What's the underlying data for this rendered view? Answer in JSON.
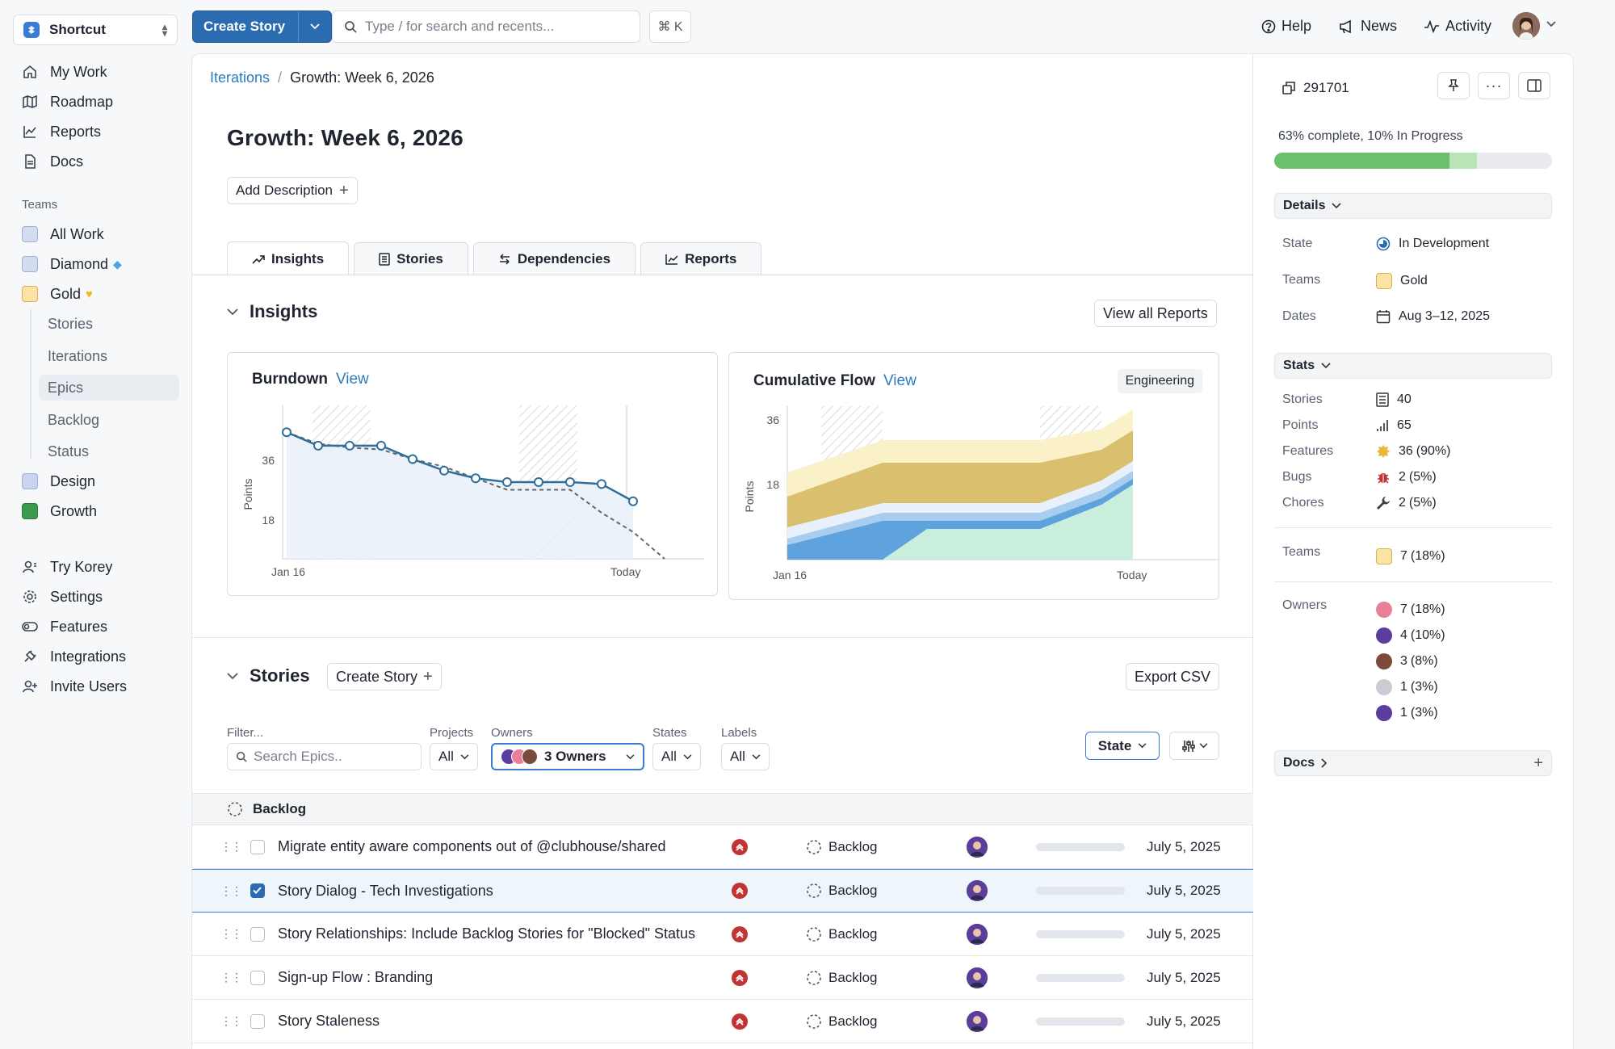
{
  "workspace": {
    "name": "Shortcut"
  },
  "nav": {
    "main": [
      {
        "label": "My Work",
        "icon": "home-icon"
      },
      {
        "label": "Roadmap",
        "icon": "map-icon"
      },
      {
        "label": "Reports",
        "icon": "chart-line-icon"
      },
      {
        "label": "Docs",
        "icon": "document-icon"
      }
    ],
    "teams_label": "Teams",
    "teams": [
      {
        "label": "All Work"
      },
      {
        "label": "Diamond"
      },
      {
        "label": "Gold"
      }
    ],
    "gold_sub": [
      "Stories",
      "Iterations",
      "Epics",
      "Backlog",
      "Status"
    ],
    "more_teams": [
      {
        "label": "Design"
      },
      {
        "label": "Growth"
      }
    ],
    "bottom": [
      {
        "label": "Try Korey"
      },
      {
        "label": "Settings"
      },
      {
        "label": "Features"
      },
      {
        "label": "Integrations"
      },
      {
        "label": "Invite Users"
      }
    ]
  },
  "topbar": {
    "create_story": "Create Story",
    "search_placeholder": "Type / for search and recents...",
    "shortcut": "⌘ K",
    "help": "Help",
    "news": "News",
    "activity": "Activity"
  },
  "breadcrumb": {
    "parent": "Iterations",
    "current": "Growth: Week 6, 2026"
  },
  "page": {
    "title": "Growth: Week 6, 2026",
    "add_description": "Add Description",
    "tabs": [
      "Insights",
      "Stories",
      "Dependencies",
      "Reports"
    ]
  },
  "insights": {
    "heading": "Insights",
    "view_all": "View all Reports",
    "burndown": {
      "title": "Burndown",
      "view": "View"
    },
    "cumulative": {
      "title": "Cumulative Flow",
      "view": "View",
      "badge": "Engineering"
    }
  },
  "chart_data": [
    {
      "type": "line",
      "title": "Burndown",
      "ylabel": "Points",
      "yticks": [
        36,
        18
      ],
      "xticks": [
        "Jan 16",
        "Today"
      ],
      "ylim": [
        0,
        40
      ],
      "series": [
        {
          "values": [
            33,
            29.5,
            29.5,
            29.5,
            26,
            23,
            21,
            20,
            20,
            20,
            19.5,
            15
          ]
        },
        {
          "values": [
            33,
            30,
            29,
            28.5,
            26,
            24,
            21,
            18,
            18,
            18,
            12,
            7,
            0
          ]
        }
      ]
    },
    {
      "type": "area",
      "title": "Cumulative Flow",
      "ylabel": "Points",
      "yticks": [
        36,
        18
      ],
      "xticks": [
        "Jan 16",
        "Today"
      ],
      "ylim": [
        0,
        42
      ]
    }
  ],
  "stories": {
    "heading": "Stories",
    "create": "Create Story",
    "export": "Export CSV",
    "filters": {
      "filter_label": "Filter...",
      "search_placeholder": "Search Epics..",
      "projects_label": "Projects",
      "projects_value": "All",
      "owners_label": "Owners",
      "owners_value": "3 Owners",
      "states_label": "States",
      "states_value": "All",
      "labels_label": "Labels",
      "labels_value": "All"
    },
    "group_by": "State",
    "group": "Backlog",
    "rows": [
      {
        "name": "Migrate entity aware components out of @clubhouse/shared",
        "state": "Backlog",
        "date": "July 5, 2025",
        "selected": false
      },
      {
        "name": "Story Dialog - Tech Investigations",
        "state": "Backlog",
        "date": "July 5, 2025",
        "selected": true
      },
      {
        "name": "Story Relationships: Include Backlog Stories for \"Blocked\" Status",
        "state": "Backlog",
        "date": "July 5, 2025",
        "selected": false
      },
      {
        "name": "Sign-up Flow : Branding",
        "state": "Backlog",
        "date": "July 5, 2025",
        "selected": false
      },
      {
        "name": "Story Staleness",
        "state": "Backlog",
        "date": "July 5, 2025",
        "selected": false
      }
    ]
  },
  "panel": {
    "id": "291701",
    "progress_text": "63% complete, 10% In Progress",
    "progress": {
      "complete": 0.63,
      "in_progress": 0.1
    },
    "details_label": "Details",
    "state_k": "State",
    "state_v": "In Development",
    "teams_k": "Teams",
    "teams_v": "Gold",
    "dates_k": "Dates",
    "dates_v": "Aug 3–12, 2025",
    "stats_label": "Stats",
    "stats": [
      {
        "k": "Stories",
        "v": "40",
        "p": ""
      },
      {
        "k": "Points",
        "v": "65",
        "p": ""
      },
      {
        "k": "Features",
        "v": "36",
        "p": "(90%)"
      },
      {
        "k": "Bugs",
        "v": "2",
        "p": "(5%)"
      },
      {
        "k": "Chores",
        "v": "2",
        "p": "(5%)"
      }
    ],
    "teams_stat": {
      "k": "Teams",
      "v": "7",
      "p": "(18%)"
    },
    "owners_k": "Owners",
    "owners": [
      {
        "v": "7",
        "p": "(18%)",
        "color": "#e8809a"
      },
      {
        "v": "4",
        "p": "(10%)",
        "color": "#5b3d9c"
      },
      {
        "v": "3",
        "p": "(8%)",
        "color": "#7a4b3a"
      },
      {
        "v": "1",
        "p": "(3%)",
        "color": "#c9ccd2"
      },
      {
        "v": "1",
        "p": "(3%)",
        "color": "#5b3d9c"
      }
    ],
    "docs_label": "Docs"
  }
}
